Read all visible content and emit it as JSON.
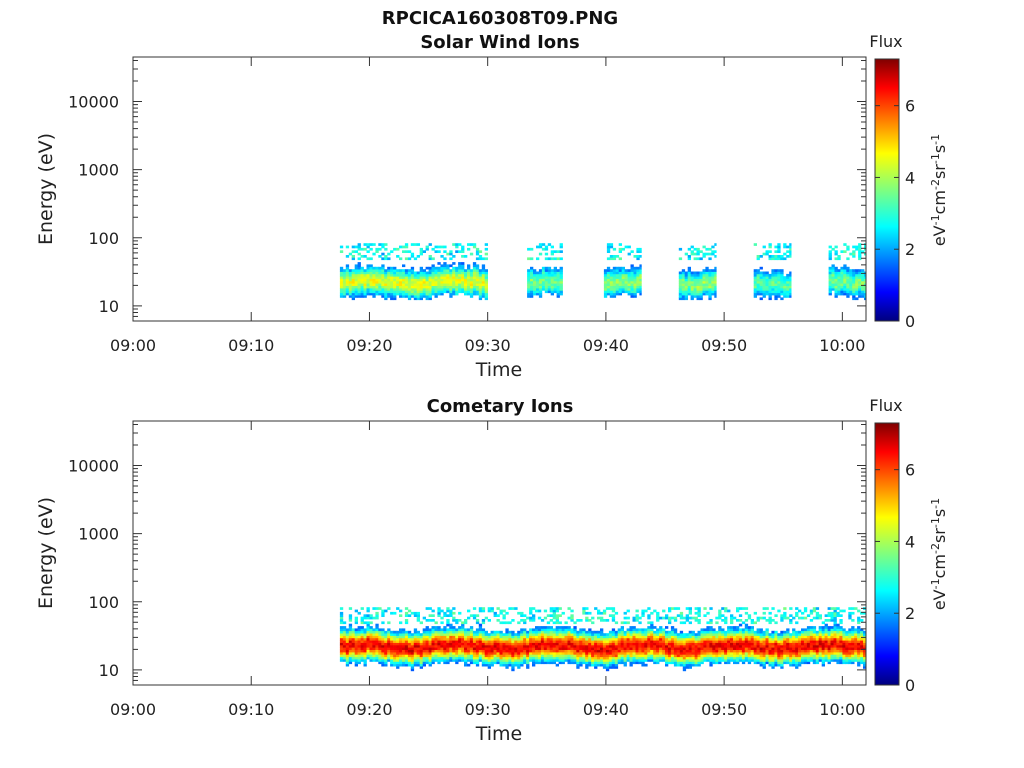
{
  "figure_title": "RPCICA160308T09.PNG",
  "chart_data": [
    {
      "type": "heatmap",
      "title": "Solar Wind Ions",
      "xlabel": "Time",
      "ylabel": "Energy (eV)",
      "x_tick_labels": [
        "09:00",
        "09:10",
        "09:20",
        "09:30",
        "09:40",
        "09:50",
        "10:00"
      ],
      "x_range": [
        "09:00",
        "10:02"
      ],
      "y_scale": "log",
      "y_range": [
        6,
        45000
      ],
      "y_tick_labels": [
        "10",
        "100",
        "1000",
        "10000"
      ],
      "colorbar": {
        "title": "Flux",
        "label": "eV-1cm-2sr-1s-1",
        "range": [
          0,
          7.3
        ],
        "ticks": [
          "0",
          "2",
          "4",
          "6"
        ]
      },
      "colormap": "jet",
      "data_start": "09:17:30",
      "data_end": "10:02",
      "segments": [
        {
          "start": "09:17:30",
          "end": "09:30:00",
          "peak_energy_eV": 22,
          "energy_range_eV": [
            12,
            80
          ],
          "peak_flux": 4.4
        },
        {
          "start": "09:33:20",
          "end": "09:36:20",
          "peak_energy_eV": 22,
          "energy_range_eV": [
            12,
            80
          ],
          "peak_flux": 3.6
        },
        {
          "start": "09:39:50",
          "end": "09:43:00",
          "peak_energy_eV": 22,
          "energy_range_eV": [
            10,
            80
          ],
          "peak_flux": 3.8
        },
        {
          "start": "09:46:10",
          "end": "09:49:20",
          "peak_energy_eV": 22,
          "energy_range_eV": [
            12,
            80
          ],
          "peak_flux": 3.8
        },
        {
          "start": "09:52:30",
          "end": "09:55:40",
          "peak_energy_eV": 22,
          "energy_range_eV": [
            12,
            80
          ],
          "peak_flux": 3.4
        },
        {
          "start": "09:58:50",
          "end": "10:02:00",
          "peak_energy_eV": 22,
          "energy_range_eV": [
            12,
            80
          ],
          "peak_flux": 3.6
        }
      ]
    },
    {
      "type": "heatmap",
      "title": "Cometary Ions",
      "xlabel": "Time",
      "ylabel": "Energy (eV)",
      "x_tick_labels": [
        "09:00",
        "09:10",
        "09:20",
        "09:30",
        "09:40",
        "09:50",
        "10:00"
      ],
      "x_range": [
        "09:00",
        "10:02"
      ],
      "y_scale": "log",
      "y_range": [
        6,
        45000
      ],
      "y_tick_labels": [
        "10",
        "100",
        "1000",
        "10000"
      ],
      "colorbar": {
        "title": "Flux",
        "label": "eV-1cm-2sr-1s-1",
        "range": [
          0,
          7.3
        ],
        "ticks": [
          "0",
          "2",
          "4",
          "6"
        ]
      },
      "colormap": "jet",
      "data_start": "09:17:30",
      "data_end": "10:02",
      "segments": [
        {
          "start": "09:17:30",
          "end": "10:02:00",
          "peak_energy_eV": 22,
          "energy_range_eV": [
            8,
            85
          ],
          "peak_flux": 6.5
        }
      ]
    }
  ]
}
